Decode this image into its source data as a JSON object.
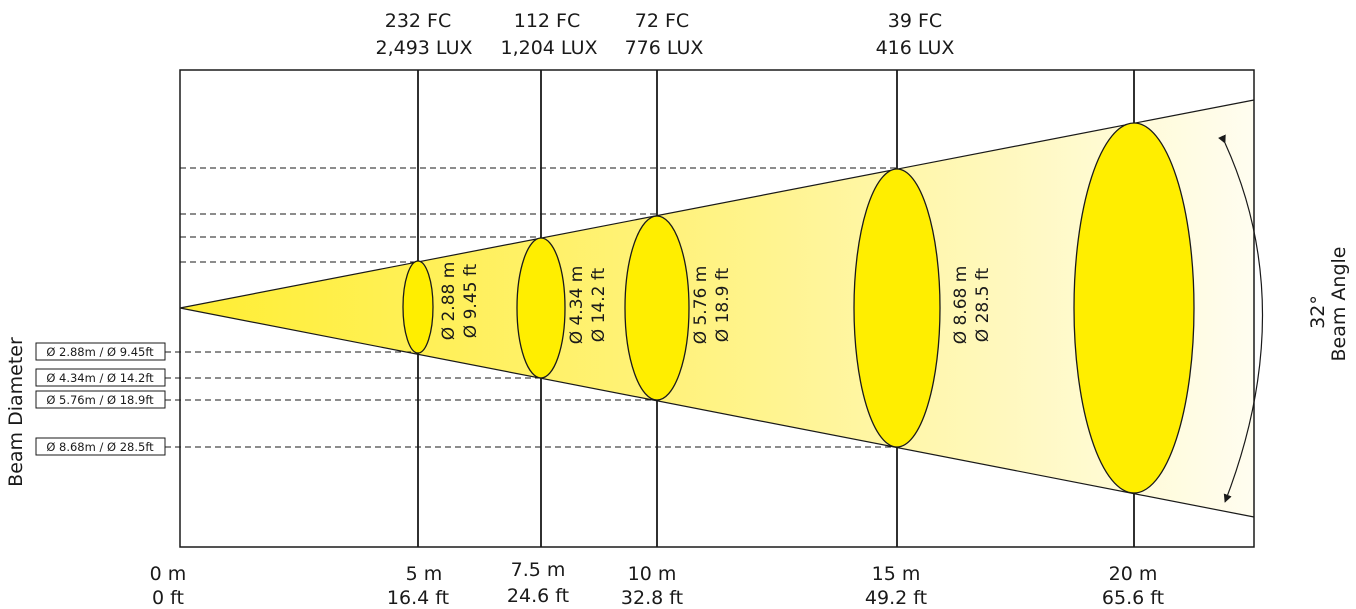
{
  "chart_data": {
    "type": "diagram",
    "beam_angle": {
      "value": "32°",
      "label": "Beam Angle"
    },
    "axis_label_left": "Beam Diameter",
    "origin": {
      "m": "0 m",
      "ft": "0 ft"
    },
    "distances": [
      {
        "m": "5 m",
        "ft": "16.4 ft",
        "fc": "232 FC",
        "lux": "2,493 LUX",
        "dia_m": "Ø 2.88 m",
        "dia_ft": "Ø 9.45 ft",
        "side_label": "Ø 2.88m / Ø 9.45ft"
      },
      {
        "m": "7.5 m",
        "ft": "24.6 ft",
        "fc": "112 FC",
        "lux": "1,204 LUX",
        "dia_m": "Ø 4.34 m",
        "dia_ft": "Ø 14.2 ft",
        "side_label": "Ø 4.34m / Ø 14.2ft"
      },
      {
        "m": "10 m",
        "ft": "32.8 ft",
        "fc": "72 FC",
        "lux": "776 LUX",
        "dia_m": "Ø 5.76 m",
        "dia_ft": "Ø 18.9 ft",
        "side_label": "Ø 5.76m / Ø 18.9ft"
      },
      {
        "m": "15 m",
        "ft": "49.2 ft",
        "fc": "39 FC",
        "lux": "416 LUX",
        "dia_m": "Ø 8.68 m",
        "dia_ft": "Ø 28.5 ft",
        "side_label": "Ø 8.68m / Ø 28.5ft"
      },
      {
        "m": "20 m",
        "ft": "65.6 ft",
        "fc": "",
        "lux": "",
        "dia_m": "",
        "dia_ft": "",
        "side_label": ""
      }
    ],
    "colors": {
      "beam_light": "#fffbe0",
      "beam_strong": "#ffee33",
      "ellipse": "#ffee00",
      "line": "#1a1a1a"
    }
  }
}
